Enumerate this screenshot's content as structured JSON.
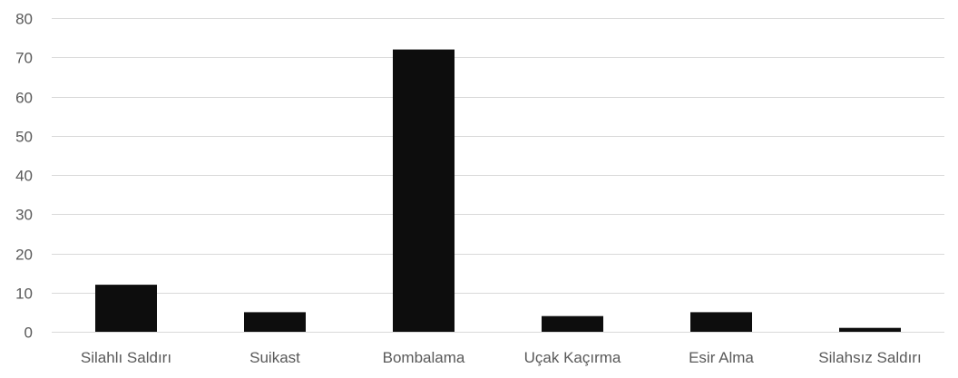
{
  "chart_data": {
    "type": "bar",
    "title": "",
    "xlabel": "",
    "ylabel": "",
    "categories": [
      "Silahlı Saldırı",
      "Suikast",
      "Bombalama",
      "Uçak Kaçırma",
      "Esir Alma",
      "Silahsız Saldırı"
    ],
    "values": [
      12,
      5,
      72,
      4,
      5,
      1
    ],
    "ylim": [
      0,
      80
    ],
    "yticks": [
      0,
      10,
      20,
      30,
      40,
      50,
      60,
      70,
      80
    ],
    "grid": true,
    "legend": "none",
    "colors": {
      "bar": "#0d0d0d",
      "grid": "#d9d9d9",
      "text": "#595959"
    }
  }
}
